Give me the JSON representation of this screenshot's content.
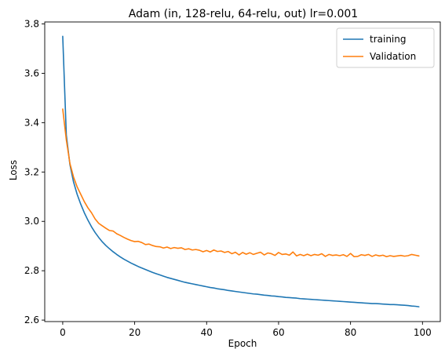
{
  "chart_data": {
    "type": "line",
    "title": "Adam (in, 128-relu, 64-relu, out) lr=0.001",
    "xlabel": "Epoch",
    "ylabel": "Loss",
    "xlim": [
      -5,
      104.95
    ],
    "ylim": [
      2.594,
      3.808
    ],
    "xticks": [
      0,
      20,
      40,
      60,
      80,
      100
    ],
    "yticks": [
      2.6,
      2.8,
      3.0,
      3.2,
      3.4,
      3.6,
      3.8
    ],
    "xtick_labels": [
      "0",
      "20",
      "40",
      "60",
      "80",
      "100"
    ],
    "ytick_labels": [
      "2.6",
      "2.8",
      "3.0",
      "3.2",
      "3.4",
      "3.6",
      "3.8"
    ],
    "grid": false,
    "legend_position": "top-right",
    "series": [
      {
        "name": "training",
        "color": "#1f77b4",
        "x": [
          0,
          1,
          2,
          3,
          4,
          5,
          6,
          7,
          8,
          9,
          10,
          11,
          12,
          13,
          14,
          15,
          16,
          17,
          18,
          19,
          20,
          21,
          22,
          23,
          24,
          25,
          26,
          27,
          28,
          29,
          30,
          31,
          32,
          33,
          34,
          35,
          36,
          37,
          38,
          39,
          40,
          41,
          42,
          43,
          44,
          45,
          46,
          47,
          48,
          49,
          50,
          51,
          52,
          53,
          54,
          55,
          56,
          57,
          58,
          59,
          60,
          61,
          62,
          63,
          64,
          65,
          66,
          67,
          68,
          69,
          70,
          71,
          72,
          73,
          74,
          75,
          76,
          77,
          78,
          79,
          80,
          81,
          82,
          83,
          84,
          85,
          86,
          87,
          88,
          89,
          90,
          91,
          92,
          93,
          94,
          95,
          96,
          97,
          98,
          99
        ],
        "y": [
          3.75,
          3.35,
          3.23,
          3.16,
          3.11,
          3.07,
          3.035,
          3.005,
          2.978,
          2.955,
          2.935,
          2.917,
          2.902,
          2.889,
          2.877,
          2.866,
          2.856,
          2.847,
          2.839,
          2.831,
          2.824,
          2.817,
          2.811,
          2.805,
          2.799,
          2.793,
          2.788,
          2.783,
          2.778,
          2.773,
          2.769,
          2.765,
          2.761,
          2.757,
          2.753,
          2.75,
          2.747,
          2.744,
          2.741,
          2.738,
          2.735,
          2.732,
          2.73,
          2.727,
          2.725,
          2.723,
          2.72,
          2.718,
          2.716,
          2.714,
          2.712,
          2.71,
          2.708,
          2.706,
          2.705,
          2.703,
          2.701,
          2.7,
          2.698,
          2.697,
          2.695,
          2.694,
          2.692,
          2.691,
          2.69,
          2.689,
          2.687,
          2.686,
          2.685,
          2.684,
          2.683,
          2.682,
          2.681,
          2.68,
          2.679,
          2.678,
          2.677,
          2.676,
          2.675,
          2.674,
          2.673,
          2.672,
          2.671,
          2.67,
          2.669,
          2.668,
          2.667,
          2.667,
          2.666,
          2.665,
          2.664,
          2.663,
          2.663,
          2.662,
          2.661,
          2.66,
          2.659,
          2.657,
          2.656,
          2.654
        ]
      },
      {
        "name": "Validation",
        "color": "#ff7f0e",
        "x": [
          0,
          1,
          2,
          3,
          4,
          5,
          6,
          7,
          8,
          9,
          10,
          11,
          12,
          13,
          14,
          15,
          16,
          17,
          18,
          19,
          20,
          21,
          22,
          23,
          24,
          25,
          26,
          27,
          28,
          29,
          30,
          31,
          32,
          33,
          34,
          35,
          36,
          37,
          38,
          39,
          40,
          41,
          42,
          43,
          44,
          45,
          46,
          47,
          48,
          49,
          50,
          51,
          52,
          53,
          54,
          55,
          56,
          57,
          58,
          59,
          60,
          61,
          62,
          63,
          64,
          65,
          66,
          67,
          68,
          69,
          70,
          71,
          72,
          73,
          74,
          75,
          76,
          77,
          78,
          79,
          80,
          81,
          82,
          83,
          84,
          85,
          86,
          87,
          88,
          89,
          90,
          91,
          92,
          93,
          94,
          95,
          96,
          97,
          98,
          99
        ],
        "y": [
          3.455,
          3.33,
          3.235,
          3.18,
          3.14,
          3.11,
          3.08,
          3.055,
          3.035,
          3.01,
          2.992,
          2.982,
          2.972,
          2.963,
          2.961,
          2.95,
          2.943,
          2.935,
          2.928,
          2.922,
          2.918,
          2.919,
          2.914,
          2.906,
          2.908,
          2.902,
          2.898,
          2.897,
          2.892,
          2.896,
          2.89,
          2.894,
          2.891,
          2.893,
          2.886,
          2.889,
          2.884,
          2.886,
          2.883,
          2.877,
          2.882,
          2.876,
          2.884,
          2.878,
          2.88,
          2.874,
          2.878,
          2.869,
          2.875,
          2.864,
          2.874,
          2.867,
          2.873,
          2.866,
          2.871,
          2.875,
          2.864,
          2.872,
          2.869,
          2.862,
          2.874,
          2.866,
          2.868,
          2.863,
          2.876,
          2.86,
          2.866,
          2.861,
          2.867,
          2.861,
          2.866,
          2.863,
          2.869,
          2.858,
          2.866,
          2.862,
          2.864,
          2.861,
          2.865,
          2.858,
          2.87,
          2.857,
          2.858,
          2.865,
          2.862,
          2.866,
          2.858,
          2.864,
          2.86,
          2.863,
          2.857,
          2.861,
          2.858,
          2.86,
          2.862,
          2.859,
          2.861,
          2.866,
          2.863,
          2.86
        ]
      }
    ]
  }
}
